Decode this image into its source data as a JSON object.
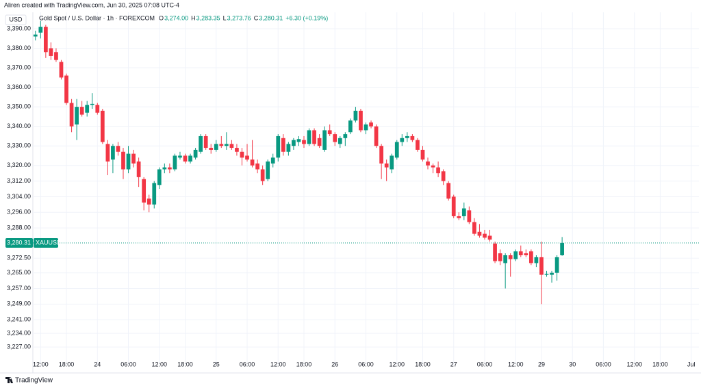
{
  "header": {
    "credit": "Aliren created with TradingView.com, Jun 30, 2025 07:08 UTC-4",
    "brand": "TradingView"
  },
  "chart_data": {
    "type": "candlestick",
    "title": "Gold Spot / U.S. Dollar · 1h · FOREXCOM",
    "currency": "USD",
    "ohlc_legend": [
      {
        "label": "O",
        "value": "3,274.00"
      },
      {
        "label": "H",
        "value": "3,283.35"
      },
      {
        "label": "L",
        "value": "3,273.76"
      },
      {
        "label": "C",
        "value": "3,280.31"
      }
    ],
    "change": "+6.30 (+0.19%)",
    "last_price": {
      "value": 3280.31,
      "label": "3,280.31",
      "symbol": "XAUUSD"
    },
    "up_color": "#089981",
    "down_color": "#f23645",
    "grid": true,
    "categories": [
      null,
      "12:00",
      null,
      null,
      null,
      null,
      "18:00",
      null,
      null,
      null,
      null,
      null,
      "24",
      null,
      null,
      null,
      null,
      null,
      "06:00",
      null,
      null,
      null,
      null,
      null,
      "12:00",
      null,
      null,
      null,
      null,
      "18:00",
      null,
      null,
      null,
      null,
      null,
      "25",
      null,
      null,
      null,
      null,
      null,
      "06:00",
      null,
      null,
      null,
      null,
      null,
      "12:00",
      null,
      null,
      null,
      null,
      "18:00",
      null,
      null,
      null,
      null,
      null,
      "26",
      null,
      null,
      null,
      null,
      null,
      "06:00",
      null,
      null,
      null,
      null,
      null,
      "12:00",
      null,
      null,
      null,
      null,
      "18:00",
      null,
      null,
      null,
      null,
      null,
      "27",
      null,
      null,
      null,
      null,
      null,
      "06:00",
      null,
      null,
      null,
      null,
      null,
      "12:00",
      null,
      null,
      null,
      null,
      "29",
      null,
      null,
      null,
      null,
      null,
      "30",
      null,
      null,
      null,
      null,
      null,
      "06:00",
      null,
      null,
      null,
      null,
      null,
      "12:00",
      null,
      null,
      null,
      null,
      "18:00",
      null,
      null,
      null,
      null,
      null,
      "Jul",
      null
    ],
    "open": [
      3386,
      3388,
      3391,
      3380,
      3378,
      3373,
      3366,
      3352,
      3341,
      3350,
      3347,
      3351,
      3351,
      3348,
      3331,
      3323,
      3330,
      3327,
      3318,
      3326,
      3322,
      3313,
      3303,
      3300,
      3310,
      3318,
      3319,
      3318,
      3324,
      3325,
      3322,
      3324,
      3327,
      3335,
      3329,
      3328,
      3331,
      3330,
      3331,
      3329,
      3327,
      3325,
      3323,
      3321,
      3318,
      3313,
      3321,
      3324,
      3334,
      3327,
      3330,
      3332,
      3333,
      3331,
      3338,
      3334,
      3328,
      3338,
      3336,
      3331,
      3334,
      3337,
      3343,
      3348,
      3338,
      3342,
      3340,
      3330,
      3321,
      3318,
      3324,
      3332,
      3334,
      3335,
      3333,
      3328,
      3322,
      3320,
      3319,
      3317,
      3311,
      3304,
      3294,
      3294,
      3297,
      3291,
      3286,
      3285,
      3284,
      3280,
      3275,
      3270,
      3274,
      3272,
      3276,
      3275,
      3276,
      3270,
      3273,
      3264,
      3264,
      3265,
      3274,
      null,
      null,
      null,
      null,
      null,
      null,
      null,
      null,
      null,
      null,
      null,
      null,
      null,
      null,
      null,
      null,
      null,
      null,
      null,
      null,
      null,
      null,
      null,
      null,
      null,
      null
    ],
    "high": [
      3389,
      3394,
      3392,
      3383,
      3380,
      3374,
      3367,
      3354,
      3354,
      3353,
      3353,
      3357,
      3352,
      3349,
      3333,
      3331,
      3332,
      3329,
      3330,
      3328,
      3324,
      3314,
      3305,
      3312,
      3319,
      3321,
      3321,
      3326,
      3327,
      3326,
      3326,
      3329,
      3336,
      3336,
      3331,
      3333,
      3335,
      3337,
      3333,
      3331,
      3329,
      3331,
      3333,
      3323,
      3320,
      3323,
      3326,
      3336,
      3336,
      3332,
      3334,
      3335,
      3335,
      3339,
      3339,
      3336,
      3340,
      3341,
      3337,
      3335,
      3337,
      3344,
      3350,
      3349,
      3342,
      3343,
      3341,
      3331,
      3323,
      3326,
      3333,
      3336,
      3337,
      3336,
      3334,
      3330,
      3324,
      3321,
      3322,
      3318,
      3312,
      3305,
      3296,
      3301,
      3299,
      3293,
      3290,
      3287,
      3287,
      3281,
      3277,
      3275,
      3275,
      3277,
      3279,
      3277,
      3277,
      3274,
      3281,
      3266,
      3266,
      3274,
      3283.35,
      null,
      null,
      null,
      null,
      null,
      null,
      null,
      null,
      null,
      null,
      null,
      null,
      null,
      null,
      null,
      null,
      null,
      null,
      null,
      null,
      null,
      null,
      null,
      null,
      null,
      null
    ],
    "low": [
      3384,
      3385,
      3375,
      3374,
      3373,
      3364,
      3351,
      3337,
      3333,
      3345,
      3345,
      3349,
      3346,
      3331,
      3315,
      3316,
      3325,
      3313,
      3316,
      3319,
      3309,
      3297,
      3296,
      3298,
      3308,
      3316,
      3316,
      3317,
      3323,
      3321,
      3321,
      3323,
      3326,
      3328,
      3326,
      3327,
      3329,
      3328,
      3328,
      3325,
      3320,
      3322,
      3319,
      3316,
      3310,
      3312,
      3319,
      3322,
      3325,
      3325,
      3328,
      3330,
      3329,
      3330,
      3330,
      3329,
      3327,
      3335,
      3330,
      3329,
      3330,
      3336,
      3342,
      3337,
      3336,
      3339,
      3329,
      3313,
      3312,
      3316,
      3323,
      3330,
      3332,
      3332,
      3327,
      3322,
      3318,
      3316,
      3314,
      3310,
      3302,
      3293,
      3292,
      3292,
      3290,
      3284,
      3283,
      3282,
      3281,
      3270,
      3269,
      3257,
      3263,
      3271,
      3273,
      3273,
      3269,
      3268,
      3249,
      3263,
      3260,
      3261,
      3273.76,
      null,
      null,
      null,
      null,
      null,
      null,
      null,
      null,
      null,
      null,
      null,
      null,
      null,
      null,
      null,
      null,
      null,
      null,
      null,
      null,
      null,
      null,
      null,
      null,
      null,
      null
    ],
    "close": [
      3387,
      3391,
      3378,
      3376,
      3374,
      3365,
      3352,
      3340,
      3350,
      3346,
      3351,
      3351.5,
      3347,
      3332,
      3322,
      3330,
      3327,
      3318,
      3326,
      3321,
      3314,
      3301,
      3300,
      3311,
      3318,
      3319,
      3318,
      3325,
      3325,
      3322,
      3325,
      3328,
      3335,
      3329,
      3328,
      3331,
      3330,
      3331,
      3329,
      3327,
      3324,
      3323,
      3320,
      3318,
      3312,
      3322,
      3324,
      3335,
      3327,
      3331,
      3333,
      3333.5,
      3331,
      3338,
      3331,
      3330,
      3338,
      3336,
      3332,
      3334,
      3336,
      3343,
      3348,
      3338,
      3341,
      3340,
      3330,
      3321,
      3319,
      3325,
      3332,
      3334,
      3335,
      3333,
      3328,
      3323,
      3320,
      3319,
      3316,
      3312,
      3303,
      3294,
      3293,
      3298,
      3291,
      3285,
      3284,
      3283,
      3282,
      3271,
      3271,
      3274,
      3272,
      3276,
      3274,
      3274,
      3270,
      3273,
      3264,
      3264.5,
      3265,
      3273,
      3280.31,
      null,
      null,
      null,
      null,
      null,
      null,
      null,
      null,
      null,
      null,
      null,
      null,
      null,
      null,
      null,
      null,
      null,
      null,
      null,
      null,
      null,
      null,
      null,
      null,
      null,
      null
    ],
    "ylim": [
      3222.5,
      3394.2
    ],
    "yticks": [
      {
        "value": 3390,
        "label": "3,390.00"
      },
      {
        "value": 3380,
        "label": "3,380.00"
      },
      {
        "value": 3370,
        "label": "3,370.00"
      },
      {
        "value": 3360,
        "label": "3,360.00"
      },
      {
        "value": 3350,
        "label": "3,350.00"
      },
      {
        "value": 3340,
        "label": "3,340.00"
      },
      {
        "value": 3330,
        "label": "3,330.00"
      },
      {
        "value": 3320,
        "label": "3,320.00"
      },
      {
        "value": 3312,
        "label": "3,312.00"
      },
      {
        "value": 3304,
        "label": "3,304.00"
      },
      {
        "value": 3296,
        "label": "3,296.00"
      },
      {
        "value": 3288,
        "label": "3,288.00"
      },
      {
        "value": 3272.5,
        "label": "3,272.50"
      },
      {
        "value": 3265,
        "label": "3,265.00"
      },
      {
        "value": 3257,
        "label": "3,257.00"
      },
      {
        "value": 3249,
        "label": "3,249.00"
      },
      {
        "value": 3241,
        "label": "3,241.00"
      },
      {
        "value": 3234,
        "label": "3,234.00"
      },
      {
        "value": 3227,
        "label": "3,227.00"
      }
    ]
  }
}
